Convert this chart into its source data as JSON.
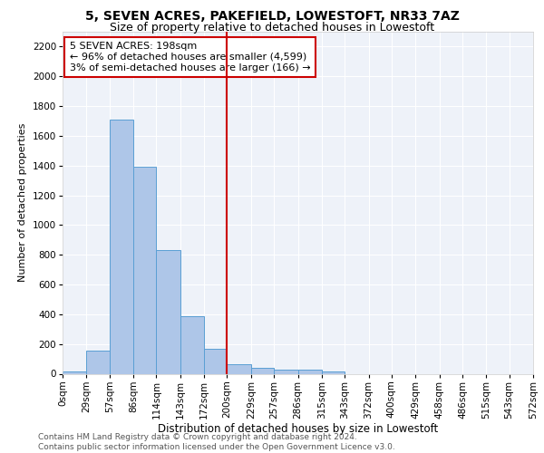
{
  "title1": "5, SEVEN ACRES, PAKEFIELD, LOWESTOFT, NR33 7AZ",
  "title2": "Size of property relative to detached houses in Lowestoft",
  "xlabel": "Distribution of detached houses by size in Lowestoft",
  "ylabel": "Number of detached properties",
  "bar_values": [
    15,
    155,
    1710,
    1390,
    830,
    385,
    165,
    65,
    40,
    25,
    30,
    15,
    0,
    0,
    0,
    0,
    0,
    0,
    0,
    0
  ],
  "bin_edges": [
    0,
    29,
    57,
    86,
    114,
    143,
    172,
    200,
    229,
    257,
    286,
    315,
    343,
    372,
    400,
    429,
    458,
    486,
    515,
    543,
    572
  ],
  "bin_labels": [
    "0sqm",
    "29sqm",
    "57sqm",
    "86sqm",
    "114sqm",
    "143sqm",
    "172sqm",
    "200sqm",
    "229sqm",
    "257sqm",
    "286sqm",
    "315sqm",
    "343sqm",
    "372sqm",
    "400sqm",
    "429sqm",
    "458sqm",
    "486sqm",
    "515sqm",
    "543sqm",
    "572sqm"
  ],
  "bar_color": "#aec6e8",
  "bar_edge_color": "#5a9fd4",
  "vline_x": 200,
  "vline_color": "#cc0000",
  "annotation_text": "5 SEVEN ACRES: 198sqm\n← 96% of detached houses are smaller (4,599)\n3% of semi-detached houses are larger (166) →",
  "annotation_box_color": "#ffffff",
  "annotation_box_edge": "#cc0000",
  "ylim": [
    0,
    2300
  ],
  "yticks": [
    0,
    200,
    400,
    600,
    800,
    1000,
    1200,
    1400,
    1600,
    1800,
    2000,
    2200
  ],
  "bg_color": "#eef2f9",
  "footer_text": "Contains HM Land Registry data © Crown copyright and database right 2024.\nContains public sector information licensed under the Open Government Licence v3.0.",
  "title1_fontsize": 10,
  "title2_fontsize": 9,
  "xlabel_fontsize": 8.5,
  "ylabel_fontsize": 8,
  "tick_fontsize": 7.5,
  "annotation_fontsize": 8,
  "footer_fontsize": 6.5
}
